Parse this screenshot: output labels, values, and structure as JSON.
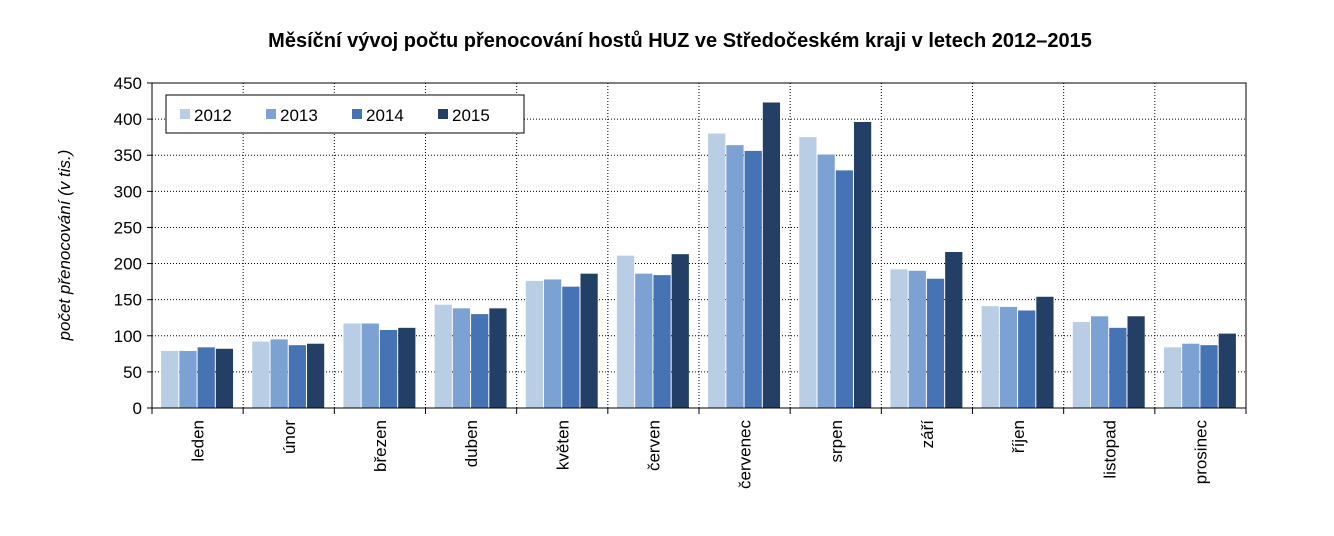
{
  "chart_data": {
    "type": "bar",
    "title": "Měsíční vývoj počtu přenocování hostů HUZ ve Středočeském kraji v letech 2012–2015",
    "ylabel": "počet přenocování (v tis.)",
    "categories": [
      "leden",
      "únor",
      "březen",
      "duben",
      "květen",
      "červen",
      "červenec",
      "srpen",
      "září",
      "říjen",
      "listopad",
      "prosinec"
    ],
    "series": [
      {
        "name": "2012",
        "color": "#b9cde5",
        "values": [
          79,
          92,
          117,
          143,
          176,
          211,
          380,
          375,
          192,
          141,
          119,
          84
        ]
      },
      {
        "name": "2013",
        "color": "#7ba2d2",
        "values": [
          79,
          95,
          117,
          138,
          178,
          186,
          364,
          351,
          190,
          140,
          127,
          89
        ]
      },
      {
        "name": "2014",
        "color": "#4673b4",
        "values": [
          84,
          87,
          108,
          130,
          168,
          184,
          356,
          329,
          179,
          135,
          111,
          87
        ]
      },
      {
        "name": "2015",
        "color": "#243f66",
        "values": [
          82,
          89,
          111,
          138,
          186,
          213,
          423,
          396,
          216,
          154,
          127,
          103
        ]
      }
    ],
    "ylim": [
      0,
      450
    ],
    "yticks": [
      0,
      50,
      100,
      150,
      200,
      250,
      300,
      350,
      400,
      450
    ],
    "grid": true,
    "legend": "upper left"
  }
}
